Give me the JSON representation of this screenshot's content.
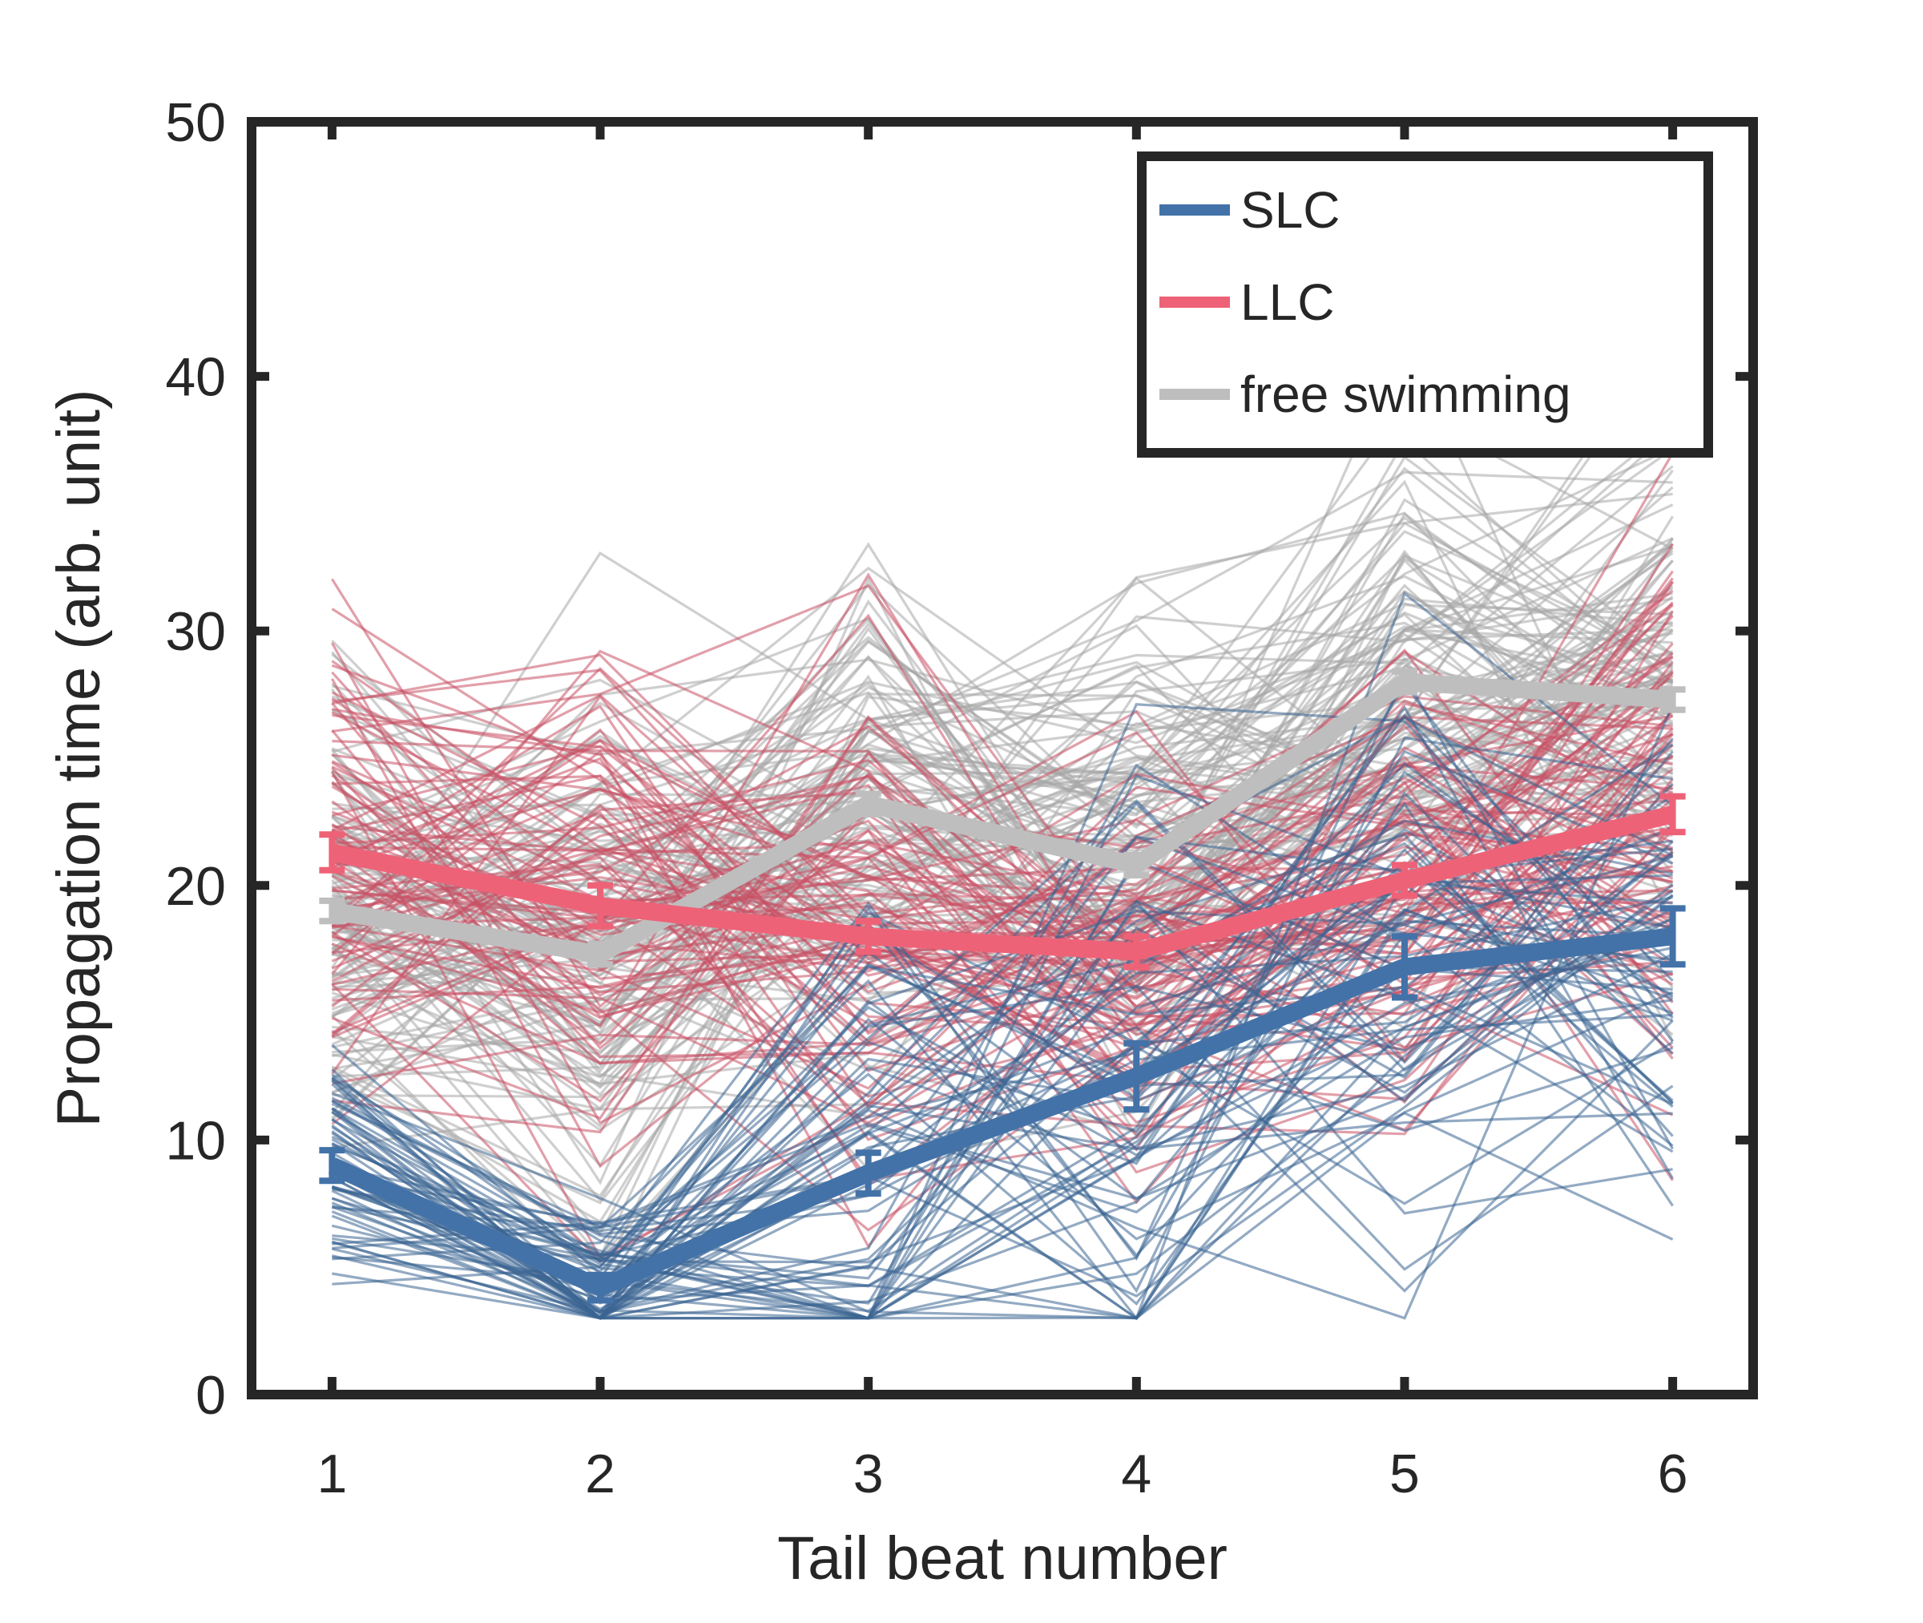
{
  "chart_data": {
    "type": "line",
    "title": "",
    "xlabel": "Tail beat number",
    "ylabel": "Propagation time (arb. unit)",
    "xlim": [
      0.7,
      6.3
    ],
    "ylim": [
      0,
      50
    ],
    "xticks": [
      1,
      2,
      3,
      4,
      5,
      6
    ],
    "yticks": [
      0,
      10,
      20,
      30,
      40,
      50
    ],
    "grid": false,
    "legend_position": "top-right",
    "x": [
      1,
      2,
      3,
      4,
      5,
      6
    ],
    "series": [
      {
        "name": "SLC",
        "color": "#4372A8",
        "values": [
          9.0,
          4.2,
          8.7,
          12.5,
          16.8,
          18.0
        ],
        "error": [
          0.6,
          0.5,
          0.8,
          1.3,
          1.2,
          1.1
        ]
      },
      {
        "name": "LLC",
        "color": "#EE6277",
        "values": [
          21.3,
          19.2,
          18.0,
          17.4,
          20.2,
          22.8
        ],
        "error": [
          0.7,
          0.8,
          0.6,
          0.6,
          0.6,
          0.7
        ]
      },
      {
        "name": "free swimming",
        "color": "#BEBEBE",
        "values": [
          19.0,
          17.3,
          23.2,
          20.8,
          28.0,
          27.3
        ],
        "error": [
          0.4,
          0.4,
          0.4,
          0.4,
          0.4,
          0.4
        ]
      }
    ],
    "background_traces": [
      {
        "group": "free swimming",
        "color": "#A8A8A8",
        "opacity": 0.55,
        "count": 120,
        "means": [
          19.0,
          17.3,
          23.2,
          20.8,
          28.0,
          27.3
        ],
        "spread": [
          6.5,
          7.5,
          7.5,
          7.5,
          7.5,
          7.5
        ]
      },
      {
        "group": "LLC",
        "color": "#C95064",
        "opacity": 0.55,
        "count": 90,
        "means": [
          21.3,
          19.2,
          18.0,
          17.4,
          20.2,
          22.8
        ],
        "spread": [
          6.5,
          8.5,
          7.5,
          6.0,
          6.5,
          7.5
        ]
      },
      {
        "group": "SLC",
        "color": "#3B6592",
        "opacity": 0.55,
        "count": 70,
        "means": [
          9.0,
          4.2,
          8.7,
          12.5,
          16.8,
          18.0
        ],
        "spread": [
          3.5,
          2.0,
          7.0,
          9.0,
          9.0,
          8.0
        ]
      }
    ]
  }
}
